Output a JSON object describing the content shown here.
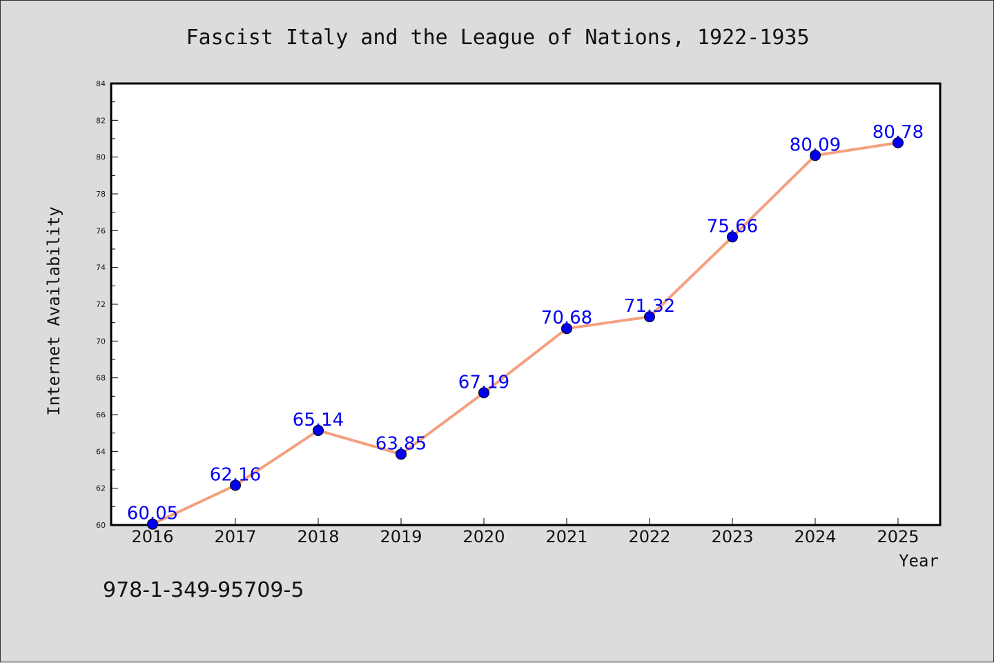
{
  "chart_data": {
    "type": "line",
    "title": "Fascist Italy and the League of Nations, 1922-1935",
    "xlabel": "Year",
    "ylabel": "Internet Availability",
    "categories": [
      "2016",
      "2017",
      "2018",
      "2019",
      "2020",
      "2021",
      "2022",
      "2023",
      "2024",
      "2025"
    ],
    "values": [
      60.05,
      62.16,
      65.14,
      63.85,
      67.19,
      70.68,
      71.32,
      75.66,
      80.09,
      80.78
    ],
    "data_labels": [
      "60.05",
      "62.16",
      "65.14",
      "63.85",
      "67.19",
      "70.68",
      "71.32",
      "75.66",
      "80.09",
      "80.78"
    ],
    "ylim": [
      60,
      84
    ],
    "yticks": [
      "60",
      "62",
      "64",
      "66",
      "68",
      "70",
      "72",
      "74",
      "76",
      "78",
      "80",
      "82",
      "84"
    ],
    "grid": false,
    "legend": "none",
    "colors": {
      "line": "#f4a07e",
      "marker": "#0000ee",
      "label": "#0000ee",
      "plot_bg": "#ffffff",
      "figure_bg": "#dcdcdc"
    },
    "annotation": "978-1-349-95709-5"
  }
}
